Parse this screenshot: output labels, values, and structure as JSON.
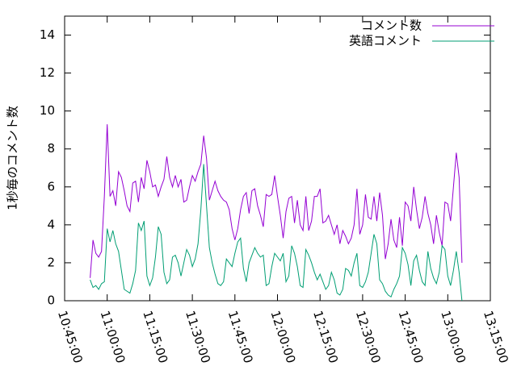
{
  "chart_data": {
    "type": "line",
    "y_label": "1秒毎のコメント数",
    "x": [
      "10:54:00",
      "10:55:00",
      "10:56:00",
      "10:57:00",
      "10:58:00",
      "10:59:00",
      "11:00:00",
      "11:01:00",
      "11:02:00",
      "11:03:00",
      "11:04:00",
      "11:05:00",
      "11:06:00",
      "11:07:00",
      "11:08:00",
      "11:09:00",
      "11:10:00",
      "11:11:00",
      "11:12:00",
      "11:13:00",
      "11:14:00",
      "11:15:00",
      "11:16:00",
      "11:17:00",
      "11:18:00",
      "11:19:00",
      "11:20:00",
      "11:21:00",
      "11:22:00",
      "11:23:00",
      "11:24:00",
      "11:25:00",
      "11:26:00",
      "11:27:00",
      "11:28:00",
      "11:29:00",
      "11:30:00",
      "11:31:00",
      "11:32:00",
      "11:33:00",
      "11:34:00",
      "11:35:00",
      "11:36:00",
      "11:37:00",
      "11:38:00",
      "11:39:00",
      "11:40:00",
      "11:41:00",
      "11:42:00",
      "11:43:00",
      "11:44:00",
      "11:45:00",
      "11:46:00",
      "11:47:00",
      "11:48:00",
      "11:49:00",
      "11:50:00",
      "11:51:00",
      "11:52:00",
      "11:53:00",
      "11:54:00",
      "11:55:00",
      "11:56:00",
      "11:57:00",
      "11:58:00",
      "11:59:00",
      "12:00:00",
      "12:01:00",
      "12:02:00",
      "12:03:00",
      "12:04:00",
      "12:05:00",
      "12:06:00",
      "12:07:00",
      "12:08:00",
      "12:09:00",
      "12:10:00",
      "12:11:00",
      "12:12:00",
      "12:13:00",
      "12:14:00",
      "12:15:00",
      "12:16:00",
      "12:17:00",
      "12:18:00",
      "12:19:00",
      "12:20:00",
      "12:21:00",
      "12:22:00",
      "12:23:00",
      "12:24:00",
      "12:25:00",
      "12:26:00",
      "12:27:00",
      "12:28:00",
      "12:29:00",
      "12:30:00",
      "12:31:00",
      "12:32:00",
      "12:33:00",
      "12:34:00",
      "12:35:00",
      "12:36:00",
      "12:37:00",
      "12:38:00",
      "12:39:00",
      "12:40:00",
      "12:41:00",
      "12:42:00",
      "12:43:00",
      "12:44:00",
      "12:45:00",
      "12:46:00",
      "12:47:00",
      "12:48:00",
      "12:49:00",
      "12:50:00",
      "12:51:00",
      "12:52:00",
      "12:53:00",
      "12:54:00",
      "12:55:00",
      "12:56:00",
      "12:57:00",
      "12:58:00",
      "12:59:00",
      "13:00:00",
      "13:01:00",
      "13:02:00",
      "13:03:00",
      "13:04:00",
      "13:05:00"
    ],
    "series": [
      {
        "name": "コメント数",
        "color": "#9400d3",
        "values": [
          1.2,
          3.2,
          2.5,
          2.3,
          2.6,
          5.5,
          9.3,
          5.5,
          5.8,
          5.0,
          6.8,
          6.5,
          5.8,
          5.0,
          4.7,
          6.2,
          6.3,
          5.2,
          6.5,
          5.9,
          7.4,
          6.8,
          6.0,
          6.1,
          5.5,
          6.0,
          6.4,
          7.6,
          6.5,
          6.0,
          6.6,
          6.0,
          6.4,
          5.2,
          5.3,
          6.0,
          6.6,
          6.3,
          6.8,
          7.2,
          8.7,
          7.5,
          5.3,
          5.8,
          6.3,
          5.8,
          5.5,
          5.3,
          5.2,
          4.8,
          3.8,
          3.2,
          3.8,
          4.8,
          5.5,
          5.7,
          4.6,
          5.8,
          5.9,
          5.0,
          4.5,
          3.9,
          5.6,
          5.5,
          5.6,
          6.6,
          5.5,
          4.5,
          3.3,
          4.7,
          5.4,
          5.5,
          4.1,
          5.3,
          4.0,
          3.7,
          5.5,
          3.7,
          4.2,
          5.5,
          5.5,
          5.9,
          4.1,
          4.2,
          4.5,
          4.0,
          3.5,
          4.0,
          3.0,
          3.7,
          3.4,
          3.0,
          3.3,
          4.0,
          5.9,
          3.5,
          4.0,
          5.6,
          4.4,
          4.3,
          5.5,
          4.2,
          5.7,
          4.5,
          2.2,
          3.0,
          4.3,
          3.2,
          2.8,
          4.4,
          2.9,
          5.2,
          5.0,
          4.2,
          6.0,
          4.8,
          3.8,
          4.4,
          5.5,
          4.6,
          4.0,
          3.0,
          4.5,
          3.6,
          2.9,
          5.2,
          5.1,
          4.2,
          6.0,
          7.8,
          6.5,
          2.0
        ]
      },
      {
        "name": "英語コメント",
        "color": "#009e73",
        "values": [
          1.1,
          0.7,
          0.8,
          0.6,
          0.9,
          1.0,
          3.8,
          3.1,
          3.7,
          3.0,
          2.6,
          1.6,
          0.6,
          0.5,
          0.4,
          0.9,
          1.6,
          4.1,
          3.7,
          4.2,
          1.3,
          0.8,
          1.2,
          2.3,
          3.9,
          3.5,
          1.5,
          0.9,
          1.1,
          2.3,
          2.4,
          2.0,
          1.3,
          2.0,
          2.7,
          2.4,
          1.8,
          2.2,
          3.0,
          4.8,
          7.2,
          5.0,
          2.8,
          2.0,
          1.4,
          0.9,
          0.8,
          1.0,
          2.2,
          2.0,
          1.8,
          2.5,
          3.1,
          3.3,
          1.7,
          1.0,
          2.0,
          2.4,
          2.8,
          2.5,
          2.3,
          2.4,
          0.8,
          0.9,
          1.8,
          2.5,
          2.3,
          2.1,
          2.5,
          1.0,
          1.3,
          2.9,
          2.5,
          1.8,
          0.8,
          0.7,
          2.7,
          2.4,
          2.0,
          1.5,
          1.1,
          1.4,
          1.0,
          0.6,
          0.8,
          1.5,
          1.1,
          0.4,
          0.3,
          0.6,
          1.7,
          1.6,
          1.3,
          2.0,
          2.5,
          0.8,
          0.7,
          1.0,
          1.5,
          2.5,
          3.5,
          3.0,
          1.1,
          0.9,
          0.5,
          0.3,
          0.2,
          0.6,
          0.9,
          1.3,
          2.8,
          2.5,
          1.9,
          0.8,
          2.1,
          2.4,
          1.6,
          1.0,
          0.8,
          2.6,
          1.7,
          1.2,
          0.9,
          1.5,
          2.9,
          2.7,
          1.3,
          0.8,
          1.6,
          2.6,
          1.5,
          0.0
        ]
      }
    ],
    "xlim": [
      "10:45:00",
      "13:15:00"
    ],
    "xticks": [
      "10:45:00",
      "11:00:00",
      "11:15:00",
      "11:30:00",
      "11:45:00",
      "12:00:00",
      "12:15:00",
      "12:30:00",
      "12:45:00",
      "13:00:00",
      "13:15:00"
    ],
    "ylim": [
      0,
      15
    ],
    "yticks": [
      0,
      2,
      4,
      6,
      8,
      10,
      12,
      14
    ],
    "legend": "top-right"
  }
}
